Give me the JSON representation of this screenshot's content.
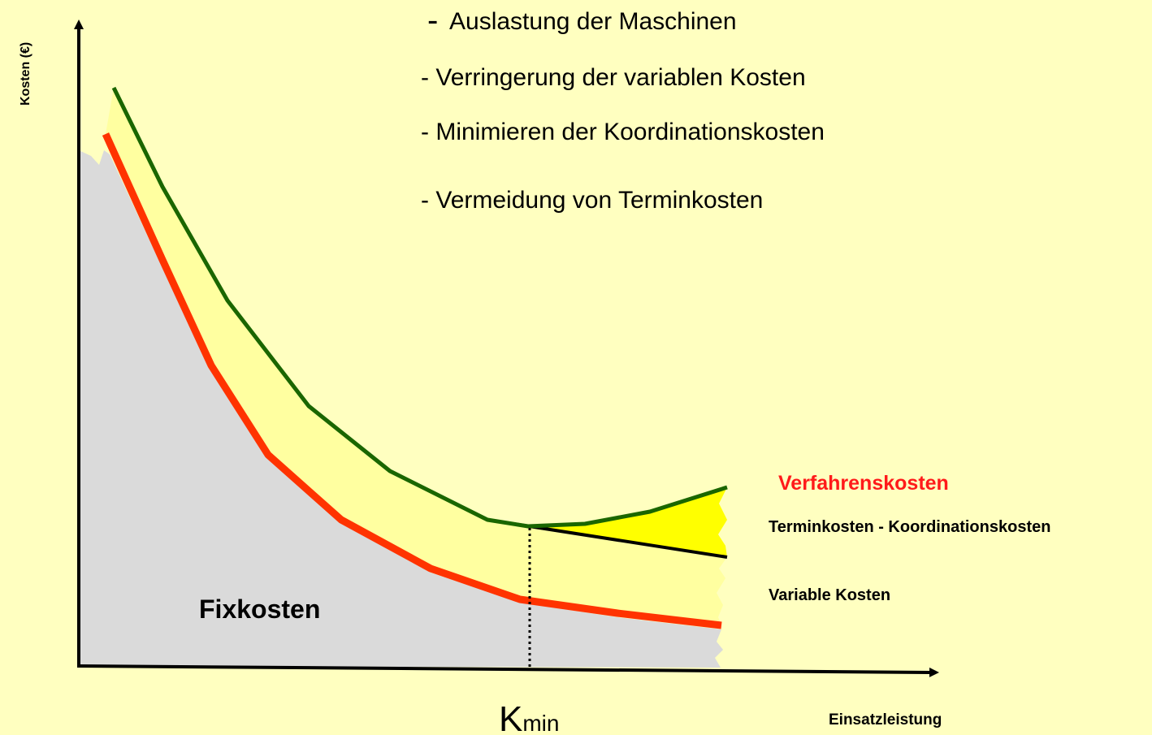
{
  "axes": {
    "y_label": "Kosten (€)",
    "x_label": "Einsatzleistung"
  },
  "bullets": [
    {
      "marker": "-",
      "text": "Auslastung der Maschinen"
    },
    {
      "marker": "-",
      "text": "Verringerung der variablen Kosten"
    },
    {
      "marker": "-",
      "text": "Minimieren der Koordinationskosten"
    },
    {
      "marker": "-",
      "text": "Vermeidung von Terminkosten"
    }
  ],
  "labels": {
    "verfahrenskosten": "Verfahrenskosten",
    "termin_koordination": "Terminkosten - Koordinationskosten",
    "variable": "Variable Kosten",
    "fixkosten": "Fixkosten"
  },
  "kmin": {
    "base": "K",
    "subscript": "min"
  }
}
